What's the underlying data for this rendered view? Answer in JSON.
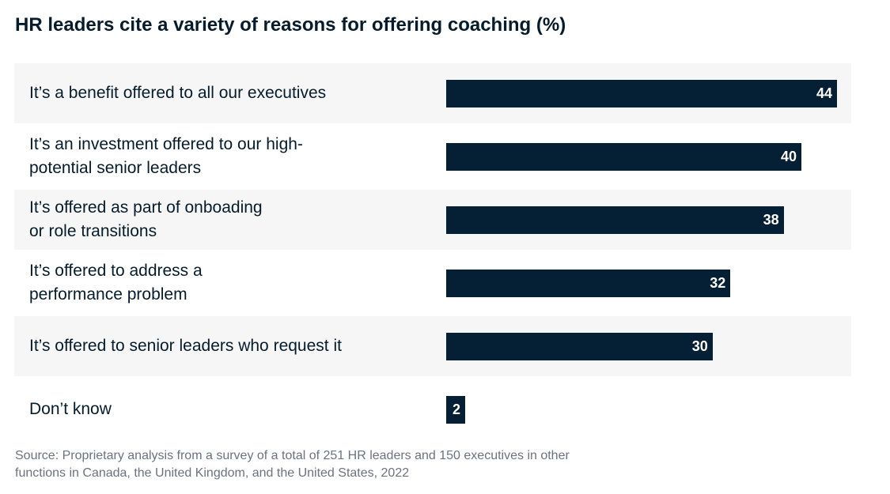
{
  "chart_data": {
    "type": "bar",
    "orientation": "horizontal",
    "title": "HR leaders cite a variety of reasons for offering coaching (%)",
    "categories": [
      "It’s a benefit offered to all our executives",
      "It’s an investment offered to our high-\npotential senior leaders",
      "It’s offered as part of onboading\nor role transitions",
      "It’s offered to address a\nperformance problem",
      "It’s offered to senior leaders who request it",
      "Don’t know"
    ],
    "values": [
      44,
      40,
      38,
      32,
      30,
      2
    ],
    "data_labels": [
      "44",
      "40",
      "38",
      "32",
      "30",
      "2"
    ],
    "xlim": [
      0,
      44
    ],
    "grid": false,
    "bar_color": "#051f35",
    "row_shade_color": "#f6f6f6",
    "source": "Source: Proprietary analysis from a survey of a total of 251 HR leaders and 150 executives in other\nfunctions in Canada, the United Kingdom, and the United States, 2022"
  }
}
